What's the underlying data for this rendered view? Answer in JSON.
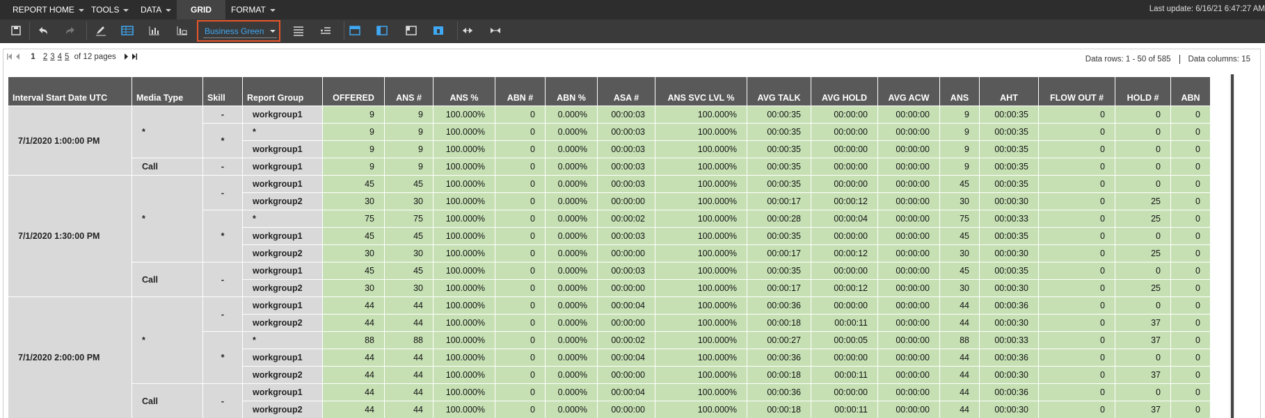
{
  "menu": {
    "items": [
      "REPORT HOME",
      "TOOLS",
      "DATA",
      "GRID",
      "FORMAT"
    ],
    "last_update": "Last update: 6/16/21 6:47:27 AM"
  },
  "toolbar": {
    "theme": "Business Green"
  },
  "pager": {
    "current": 1,
    "pages": [
      2,
      3,
      4,
      5
    ],
    "total": "of 12 pages"
  },
  "stats": {
    "rows": "Data rows: 1 - 50 of 585",
    "columns": "Data columns: 15"
  },
  "table": {
    "headers": [
      "Interval Start Date UTC",
      "Media Type",
      "Skill",
      "Report Group",
      "OFFERED",
      "ANS #",
      "ANS %",
      "ABN #",
      "ABN %",
      "ASA #",
      "ANS SVC LVL %",
      "AVG TALK",
      "AVG HOLD",
      "AVG ACW",
      "ANS",
      "AHT",
      "FLOW OUT #",
      "HOLD #",
      "ABN"
    ],
    "intervals": [
      {
        "label": "7/1/2020 1:00:00 PM",
        "media": [
          {
            "label": "*",
            "skills": [
              {
                "label": "-",
                "rows": [
                  {
                    "group": "workgroup1",
                    "values": [
                      9,
                      9,
                      "100.000%",
                      0,
                      "0.000%",
                      "00:00:03",
                      "100.000%",
                      "00:00:35",
                      "00:00:00",
                      "00:00:00",
                      9,
                      "00:00:35",
                      0,
                      0,
                      0
                    ]
                  }
                ]
              },
              {
                "label": "*",
                "rows": [
                  {
                    "group": "*",
                    "values": [
                      9,
                      9,
                      "100.000%",
                      0,
                      "0.000%",
                      "00:00:03",
                      "100.000%",
                      "00:00:35",
                      "00:00:00",
                      "00:00:00",
                      9,
                      "00:00:35",
                      0,
                      0,
                      0
                    ]
                  },
                  {
                    "group": "workgroup1",
                    "values": [
                      9,
                      9,
                      "100.000%",
                      0,
                      "0.000%",
                      "00:00:03",
                      "100.000%",
                      "00:00:35",
                      "00:00:00",
                      "00:00:00",
                      9,
                      "00:00:35",
                      0,
                      0,
                      0
                    ]
                  }
                ]
              }
            ]
          },
          {
            "label": "Call",
            "skills": [
              {
                "label": "-",
                "rows": [
                  {
                    "group": "workgroup1",
                    "values": [
                      9,
                      9,
                      "100.000%",
                      0,
                      "0.000%",
                      "00:00:03",
                      "100.000%",
                      "00:00:35",
                      "00:00:00",
                      "00:00:00",
                      9,
                      "00:00:35",
                      0,
                      0,
                      0
                    ]
                  }
                ]
              }
            ]
          }
        ]
      },
      {
        "label": "7/1/2020 1:30:00 PM",
        "media": [
          {
            "label": "*",
            "skills": [
              {
                "label": "-",
                "rows": [
                  {
                    "group": "workgroup1",
                    "values": [
                      45,
                      45,
                      "100.000%",
                      0,
                      "0.000%",
                      "00:00:03",
                      "100.000%",
                      "00:00:35",
                      "00:00:00",
                      "00:00:00",
                      45,
                      "00:00:35",
                      0,
                      0,
                      0
                    ]
                  },
                  {
                    "group": "workgroup2",
                    "values": [
                      30,
                      30,
                      "100.000%",
                      0,
                      "0.000%",
                      "00:00:00",
                      "100.000%",
                      "00:00:17",
                      "00:00:12",
                      "00:00:00",
                      30,
                      "00:00:30",
                      0,
                      25,
                      0
                    ]
                  }
                ]
              },
              {
                "label": "*",
                "rows": [
                  {
                    "group": "*",
                    "values": [
                      75,
                      75,
                      "100.000%",
                      0,
                      "0.000%",
                      "00:00:02",
                      "100.000%",
                      "00:00:28",
                      "00:00:04",
                      "00:00:00",
                      75,
                      "00:00:33",
                      0,
                      25,
                      0
                    ]
                  },
                  {
                    "group": "workgroup1",
                    "values": [
                      45,
                      45,
                      "100.000%",
                      0,
                      "0.000%",
                      "00:00:03",
                      "100.000%",
                      "00:00:35",
                      "00:00:00",
                      "00:00:00",
                      45,
                      "00:00:35",
                      0,
                      0,
                      0
                    ]
                  },
                  {
                    "group": "workgroup2",
                    "values": [
                      30,
                      30,
                      "100.000%",
                      0,
                      "0.000%",
                      "00:00:00",
                      "100.000%",
                      "00:00:17",
                      "00:00:12",
                      "00:00:00",
                      30,
                      "00:00:30",
                      0,
                      25,
                      0
                    ]
                  }
                ]
              }
            ]
          },
          {
            "label": "Call",
            "skills": [
              {
                "label": "-",
                "rows": [
                  {
                    "group": "workgroup1",
                    "values": [
                      45,
                      45,
                      "100.000%",
                      0,
                      "0.000%",
                      "00:00:03",
                      "100.000%",
                      "00:00:35",
                      "00:00:00",
                      "00:00:00",
                      45,
                      "00:00:35",
                      0,
                      0,
                      0
                    ]
                  },
                  {
                    "group": "workgroup2",
                    "values": [
                      30,
                      30,
                      "100.000%",
                      0,
                      "0.000%",
                      "00:00:00",
                      "100.000%",
                      "00:00:17",
                      "00:00:12",
                      "00:00:00",
                      30,
                      "00:00:30",
                      0,
                      25,
                      0
                    ]
                  }
                ]
              }
            ]
          }
        ]
      },
      {
        "label": "7/1/2020 2:00:00 PM",
        "media": [
          {
            "label": "*",
            "skills": [
              {
                "label": "-",
                "rows": [
                  {
                    "group": "workgroup1",
                    "values": [
                      44,
                      44,
                      "100.000%",
                      0,
                      "0.000%",
                      "00:00:04",
                      "100.000%",
                      "00:00:36",
                      "00:00:00",
                      "00:00:00",
                      44,
                      "00:00:36",
                      0,
                      0,
                      0
                    ]
                  },
                  {
                    "group": "workgroup2",
                    "values": [
                      44,
                      44,
                      "100.000%",
                      0,
                      "0.000%",
                      "00:00:00",
                      "100.000%",
                      "00:00:18",
                      "00:00:11",
                      "00:00:00",
                      44,
                      "00:00:30",
                      0,
                      37,
                      0
                    ]
                  }
                ]
              },
              {
                "label": "*",
                "rows": [
                  {
                    "group": "*",
                    "values": [
                      88,
                      88,
                      "100.000%",
                      0,
                      "0.000%",
                      "00:00:02",
                      "100.000%",
                      "00:00:27",
                      "00:00:05",
                      "00:00:00",
                      88,
                      "00:00:33",
                      0,
                      37,
                      0
                    ]
                  },
                  {
                    "group": "workgroup1",
                    "values": [
                      44,
                      44,
                      "100.000%",
                      0,
                      "0.000%",
                      "00:00:04",
                      "100.000%",
                      "00:00:36",
                      "00:00:00",
                      "00:00:00",
                      44,
                      "00:00:36",
                      0,
                      0,
                      0
                    ]
                  },
                  {
                    "group": "workgroup2",
                    "values": [
                      44,
                      44,
                      "100.000%",
                      0,
                      "0.000%",
                      "00:00:00",
                      "100.000%",
                      "00:00:18",
                      "00:00:11",
                      "00:00:00",
                      44,
                      "00:00:30",
                      0,
                      37,
                      0
                    ]
                  }
                ]
              }
            ]
          },
          {
            "label": "Call",
            "skills": [
              {
                "label": "-",
                "rows": [
                  {
                    "group": "workgroup1",
                    "values": [
                      44,
                      44,
                      "100.000%",
                      0,
                      "0.000%",
                      "00:00:04",
                      "100.000%",
                      "00:00:36",
                      "00:00:00",
                      "00:00:00",
                      44,
                      "00:00:36",
                      0,
                      0,
                      0
                    ]
                  },
                  {
                    "group": "workgroup2",
                    "values": [
                      44,
                      44,
                      "100.000%",
                      0,
                      "0.000%",
                      "00:00:00",
                      "100.000%",
                      "00:00:18",
                      "00:00:11",
                      "00:00:00",
                      44,
                      "00:00:30",
                      0,
                      37,
                      0
                    ]
                  }
                ]
              }
            ]
          }
        ]
      }
    ]
  }
}
